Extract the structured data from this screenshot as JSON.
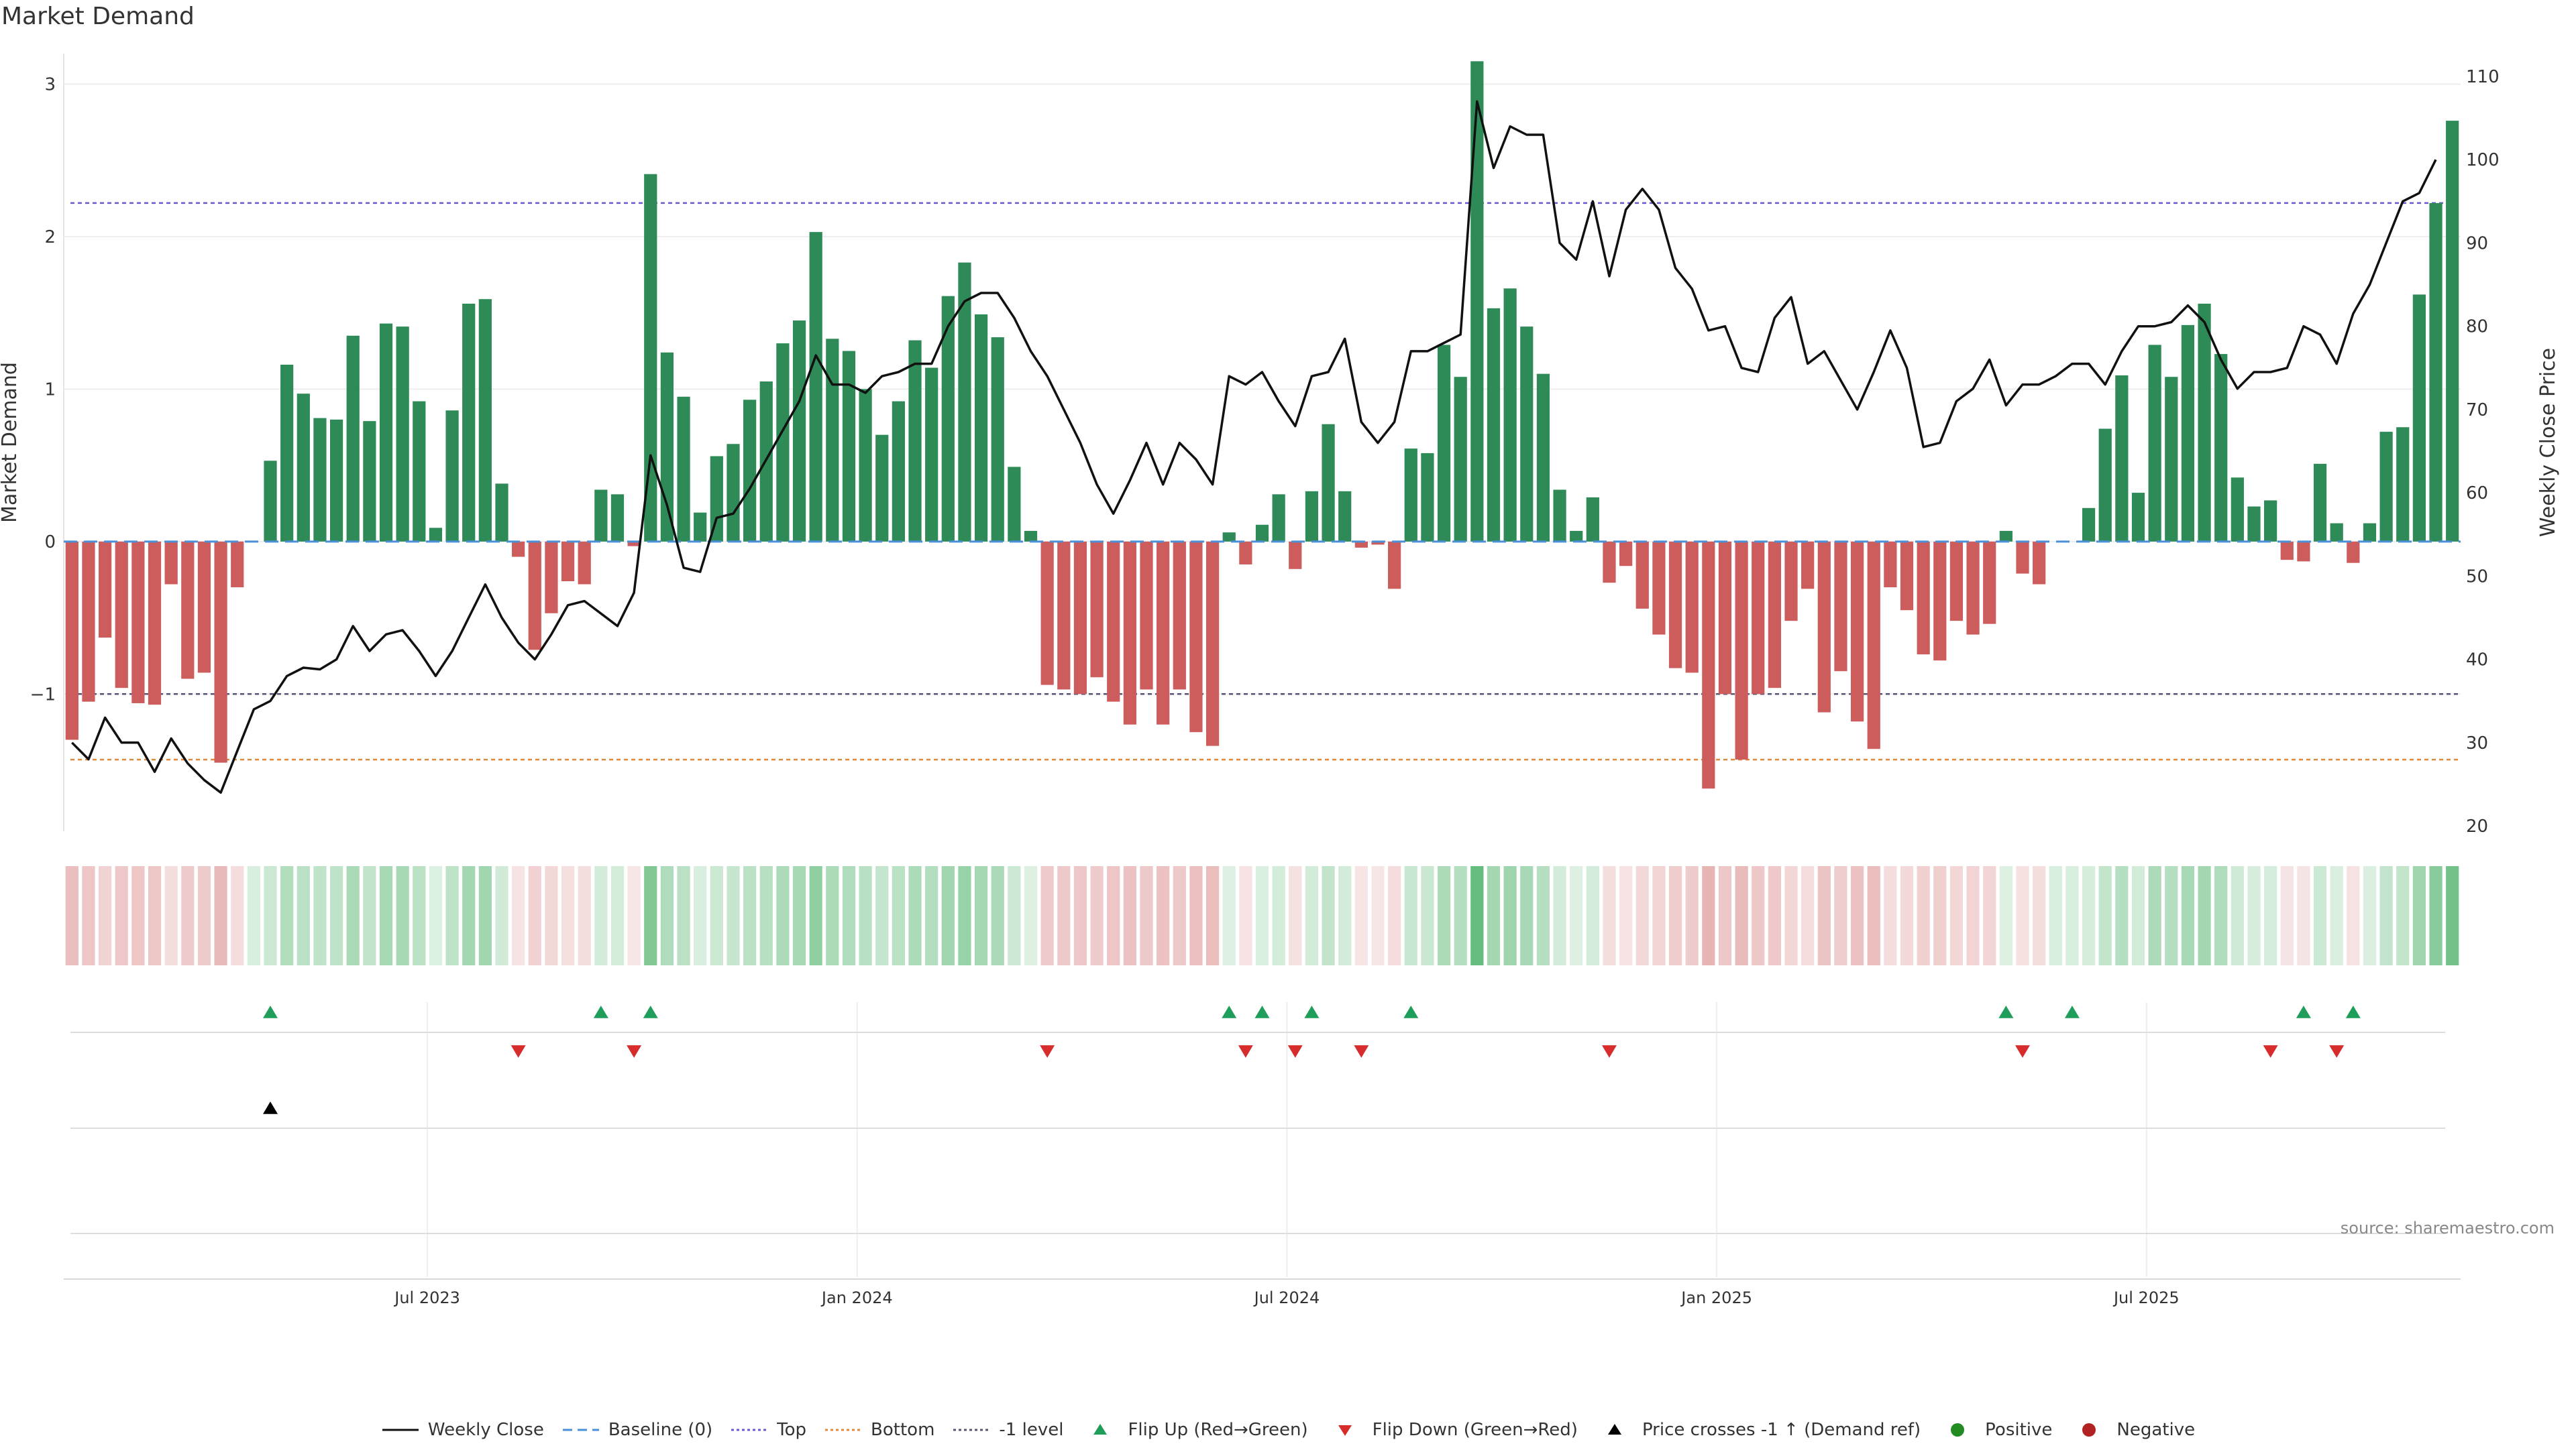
{
  "title": "Market Demand",
  "source": "source: sharemaestro.com",
  "colors": {
    "positive": "#2e8b57",
    "negative": "#cd5c5c",
    "price": "#111111",
    "top_line": "#6a5acd",
    "bottom_line": "#e08a3c",
    "neg1_line": "#555577",
    "baseline": "#4a90d9",
    "flip_up": "#1e9e5a",
    "flip_down": "#d62c2c"
  },
  "chart_data": {
    "type": "bar",
    "title": "Market Demand",
    "ylabel": "Market Demand",
    "y2label": "Weekly Close Price",
    "ylim": [
      -1.9,
      3.2
    ],
    "y2lim": [
      20,
      110
    ],
    "yticks": [
      "3",
      "2",
      "1",
      "0",
      "−1"
    ],
    "y2ticks": [
      "110",
      "100",
      "90",
      "80",
      "70",
      "60",
      "50",
      "40",
      "30",
      "20"
    ],
    "xticks": [
      {
        "label": "Jul 2023",
        "week": 22
      },
      {
        "label": "Jan 2024",
        "week": 48
      },
      {
        "label": "Jul 2024",
        "week": 74
      },
      {
        "label": "Jan 2025",
        "week": 100
      },
      {
        "label": "Jul 2025",
        "week": 126
      }
    ],
    "levels": {
      "top": 2.22,
      "bottom": -1.43,
      "minus_one": -1.0,
      "baseline": 0
    },
    "demand": [
      -1.3,
      -1.05,
      -0.63,
      -0.96,
      -1.06,
      -1.07,
      -0.28,
      -0.9,
      -0.86,
      -1.45,
      -0.3,
      0,
      0.53,
      1.16,
      0.97,
      0.81,
      0.8,
      1.35,
      0.79,
      1.43,
      1.41,
      0.92,
      0.09,
      0.86,
      1.56,
      1.59,
      0.38,
      -0.1,
      -0.71,
      -0.47,
      -0.26,
      -0.28,
      0.34,
      0.31,
      -0.03,
      2.41,
      1.24,
      0.95,
      0.19,
      0.56,
      0.64,
      0.93,
      1.05,
      1.3,
      1.45,
      2.03,
      1.33,
      1.25,
      1.0,
      0.7,
      0.92,
      1.32,
      1.14,
      1.61,
      1.83,
      1.49,
      1.34,
      0.49,
      0.07,
      -0.94,
      -0.97,
      -1.0,
      -0.89,
      -1.05,
      -1.2,
      -0.97,
      -1.2,
      -0.97,
      -1.25,
      -1.34,
      0.06,
      -0.15,
      0.11,
      0.31,
      -0.18,
      0.33,
      0.77,
      0.33,
      -0.04,
      -0.02,
      -0.31,
      0.61,
      0.58,
      1.29,
      1.08,
      3.15,
      1.53,
      1.66,
      1.41,
      1.1,
      0.34,
      0.07,
      0.29,
      -0.27,
      -0.16,
      -0.44,
      -0.61,
      -0.83,
      -0.86,
      -1.62,
      -1.0,
      -1.43,
      -1.0,
      -0.96,
      -0.52,
      -0.31,
      -1.12,
      -0.85,
      -1.18,
      -1.36,
      -0.3,
      -0.45,
      -0.74,
      -0.78,
      -0.52,
      -0.61,
      -0.54,
      0.07,
      -0.21,
      -0.28,
      0.0,
      0.0,
      0.22,
      0.74,
      1.09,
      0.32,
      1.29,
      1.08,
      1.42,
      1.56,
      1.23,
      0.42,
      0.23,
      0.27,
      -0.12,
      -0.13,
      0.51,
      0.12,
      -0.14,
      0.12,
      0.72,
      0.75,
      1.62,
      2.22,
      2.76
    ],
    "price": [
      30,
      28,
      33,
      30,
      30,
      26.5,
      30.5,
      27.5,
      25.5,
      24,
      29,
      34,
      35,
      38,
      39,
      38.8,
      40,
      44,
      41,
      43,
      43.5,
      41,
      38,
      41,
      45,
      49,
      45,
      42,
      40,
      43,
      46.5,
      47,
      45.5,
      44,
      48,
      64.5,
      58.5,
      51,
      50.5,
      57,
      57.5,
      60.5,
      64,
      67.5,
      71,
      76.5,
      73,
      73,
      72,
      74,
      74.5,
      75.5,
      75.5,
      80,
      83,
      84,
      84,
      81,
      77,
      74,
      70,
      66,
      61,
      57.5,
      61.5,
      66,
      61,
      66,
      64,
      61,
      74,
      73,
      74.5,
      71,
      68,
      74,
      74.5,
      78.5,
      68.5,
      66,
      68.5,
      77,
      77,
      78,
      79,
      107,
      99,
      104,
      103,
      103,
      90,
      88,
      95,
      86,
      94,
      96.5,
      94,
      87,
      84.5,
      79.5,
      80,
      75,
      74.5,
      81,
      83.5,
      75.5,
      77,
      73.5,
      70,
      74.5,
      79.5,
      75,
      65.5,
      66,
      71,
      72.5,
      76,
      70.5,
      73,
      73,
      74,
      75.5,
      75.5,
      73,
      77,
      80,
      80,
      80.5,
      82.5,
      80.5,
      76,
      72.5,
      74.5,
      74.5,
      75,
      80,
      79,
      75.5,
      81.5,
      85,
      90,
      95,
      96,
      100
    ],
    "flip_up_weeks": [
      12,
      32,
      35,
      70,
      72,
      75,
      81,
      117,
      121,
      135,
      138
    ],
    "flip_down_weeks": [
      27,
      34,
      59,
      71,
      74,
      78,
      93,
      118,
      133,
      137
    ],
    "price_cross_weeks": [
      12
    ]
  },
  "legend": [
    {
      "label": "Weekly Close",
      "kind": "line-solid",
      "color": "#111111"
    },
    {
      "label": "Baseline (0)",
      "kind": "line-dashed",
      "color": "#4a90d9"
    },
    {
      "label": "Top",
      "kind": "line-dotted",
      "color": "#6a5acd"
    },
    {
      "label": "Bottom",
      "kind": "line-dotted",
      "color": "#e08a3c"
    },
    {
      "label": "-1 level",
      "kind": "line-dotted",
      "color": "#555577"
    },
    {
      "label": "Flip Up (Red→Green)",
      "kind": "tri-up",
      "color": "#1e9e5a"
    },
    {
      "label": "Flip Down (Green→Red)",
      "kind": "tri-down",
      "color": "#d62c2c"
    },
    {
      "label": "Price crosses -1 ↑ (Demand ref)",
      "kind": "tri-up",
      "color": "#000000"
    },
    {
      "label": "Positive",
      "kind": "dot",
      "color": "#228b22"
    },
    {
      "label": "Negative",
      "kind": "dot",
      "color": "#b22222"
    }
  ]
}
